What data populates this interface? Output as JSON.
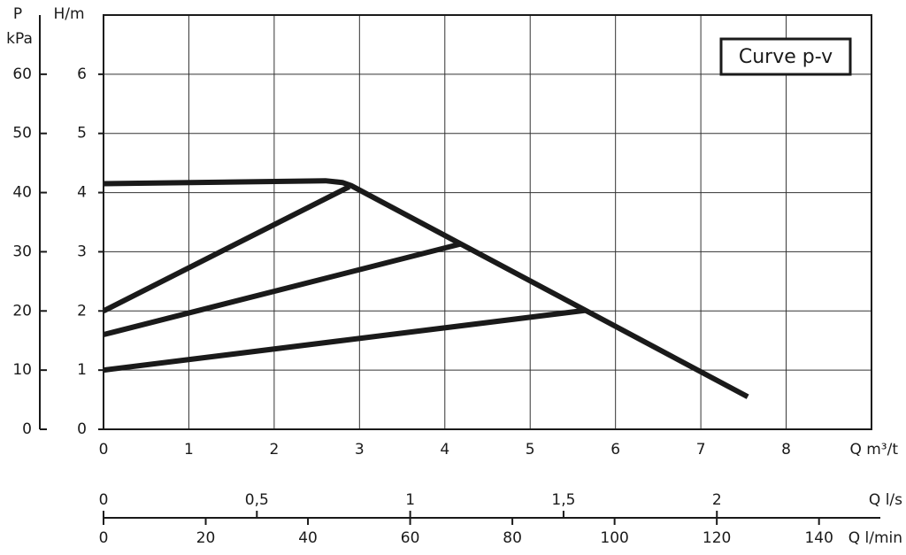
{
  "chart_data": {
    "type": "line",
    "title": "Curve  p-v",
    "y_label": "H/m",
    "y2_label_top": "P",
    "y2_label": "kPa",
    "x_label": "Q m³/t",
    "xlim": [
      0,
      9
    ],
    "xticks": [
      0,
      1,
      2,
      3,
      4,
      5,
      6,
      7,
      8
    ],
    "ylim": [
      0,
      7
    ],
    "yticks": [
      0,
      1,
      2,
      3,
      4,
      5,
      6
    ],
    "y2lim": [
      0,
      70
    ],
    "y2ticks": [
      0,
      10,
      20,
      30,
      40,
      50,
      60
    ],
    "grid": true,
    "series": [
      {
        "color": "#1a1a1a",
        "x": [
          0,
          2.6,
          2.8,
          2.9,
          7.55
        ],
        "values": [
          4.15,
          4.2,
          4.17,
          4.12,
          0.55
        ]
      },
      {
        "color": "#1a1a1a",
        "x": [
          0,
          2.88
        ],
        "values": [
          2.0,
          4.1
        ]
      },
      {
        "color": "#1a1a1a",
        "x": [
          0,
          4.18
        ],
        "values": [
          1.6,
          3.13
        ]
      },
      {
        "color": "#1a1a1a",
        "x": [
          0,
          5.65
        ],
        "values": [
          1.0,
          2.01
        ]
      }
    ],
    "secondary_x_axes": [
      {
        "label": "Q l/s",
        "lim": [
          0,
          2.533
        ],
        "ticks": [
          0,
          {
            "value": 0.5,
            "label": "0,5"
          },
          1,
          {
            "value": 1.5,
            "label": "1,5"
          },
          2
        ]
      },
      {
        "label": "Q l/min",
        "lim": [
          0,
          152
        ],
        "ticks": [
          0,
          20,
          40,
          60,
          80,
          100,
          120,
          140
        ]
      }
    ]
  }
}
